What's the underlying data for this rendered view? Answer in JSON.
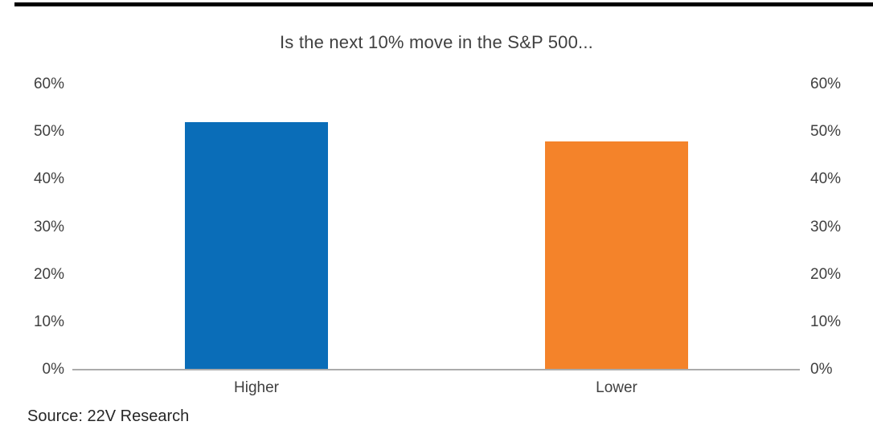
{
  "chart_data": {
    "type": "bar",
    "title": "Is the next 10% move in the S&P 500...",
    "categories": [
      "Higher",
      "Lower"
    ],
    "values": [
      52,
      48
    ],
    "value_unit": "%",
    "ylim": [
      0,
      60
    ],
    "ytick_interval": 10,
    "ytick_labels": [
      "60%",
      "50%",
      "40%",
      "30%",
      "20%",
      "10%",
      "0%"
    ],
    "y_axis_sides": [
      "left",
      "right"
    ],
    "gridlines": false,
    "legend": false,
    "bar_colors": [
      "#0A6DB8",
      "#F4832A"
    ],
    "source": "Source: 22V Research"
  },
  "colors": {
    "title_text": "#404040",
    "axis_text": "#404040",
    "category_text": "#404040",
    "source_text": "#262626",
    "axis_line": "#ABABAB",
    "top_rule": "#000000",
    "background": "#FFFFFF"
  }
}
